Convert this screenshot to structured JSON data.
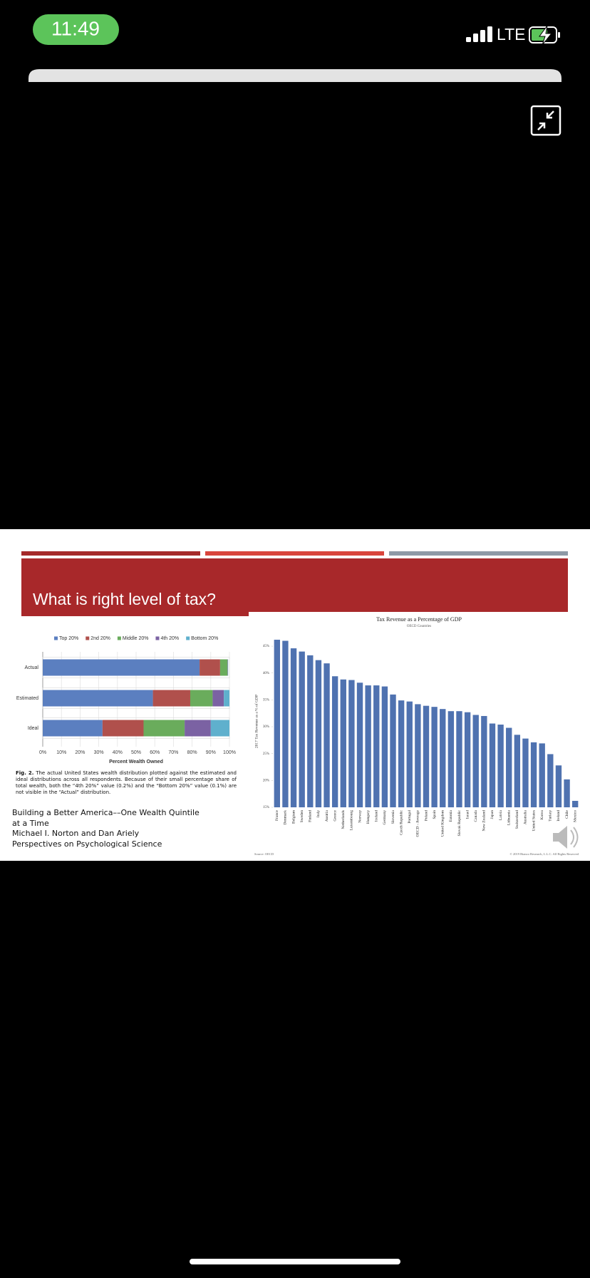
{
  "status_bar": {
    "time": "11:49",
    "network": "LTE"
  },
  "slide": {
    "title": "What is right level of tax?",
    "caption_label": "Fig. 2.",
    "caption": "The actual United States wealth distribution plotted against the estimated and ideal distributions across all respondents. Because of their small percentage share of total wealth, both the “4th 20%” value (0.2%) and the “Bottom 20%” value (0.1%) are not visible in the “Actual” distribution.",
    "citation": [
      "Building a Better America––One Wealth Quintile at a Time",
      "Michael I. Norton and Dan Ariely",
      "Perspectives on Psychological Science"
    ]
  },
  "chart_data": [
    {
      "type": "bar",
      "orientation": "horizontal",
      "stacked": true,
      "x_label": "Percent Wealth Owned",
      "categories": [
        "Actual",
        "Estimated",
        "Ideal"
      ],
      "series": [
        {
          "name": "Top 20%",
          "color": "#5b7fc0",
          "values": [
            84,
            59,
            32
          ]
        },
        {
          "name": "2nd 20%",
          "color": "#b0504c",
          "values": [
            11,
            20,
            22
          ]
        },
        {
          "name": "Middle 20%",
          "color": "#6aac5c",
          "values": [
            4,
            12,
            22
          ]
        },
        {
          "name": "4th 20%",
          "color": "#7b62a3",
          "values": [
            0.2,
            6,
            14
          ]
        },
        {
          "name": "Bottom 20%",
          "color": "#5fb0cd",
          "values": [
            0.1,
            3,
            10
          ]
        }
      ],
      "xlim": [
        0,
        100
      ],
      "xticks": [
        {
          "value": 0,
          "label": "0%"
        },
        {
          "value": 10,
          "label": "10%"
        },
        {
          "value": 20,
          "label": "20%"
        },
        {
          "value": 30,
          "label": "30%"
        },
        {
          "value": 40,
          "label": "40%"
        },
        {
          "value": 50,
          "label": "50%"
        },
        {
          "value": 60,
          "label": "60%"
        },
        {
          "value": 70,
          "label": "70%"
        },
        {
          "value": 80,
          "label": "80%"
        },
        {
          "value": 90,
          "label": "90%"
        },
        {
          "value": 100,
          "label": "100%"
        }
      ],
      "grid": true,
      "legend": "top"
    },
    {
      "type": "bar",
      "orientation": "vertical",
      "title": "Tax Revenue as a Percentage of GDP",
      "subtitle": "OECD Countries",
      "y_label": "2017 Tax Revenue as a % of GDP",
      "source": "Source: OECD",
      "copyright": "© 2019 Bianco Research, L.L.C. All Rights Reserved",
      "categories": [
        "France",
        "Denmark",
        "Belgium",
        "Sweden",
        "Finland",
        "Italy",
        "Austria",
        "Greece",
        "Netherlands",
        "Luxembourg",
        "Norway",
        "Hungary",
        "Iceland",
        "Germany",
        "Slovenia",
        "Czech Republic",
        "Portugal",
        "OECD - Average",
        "Poland",
        "Spain",
        "United Kingdom",
        "Estonia",
        "Slovak Republic",
        "Israel",
        "Canada",
        "New Zealand",
        "Japan",
        "Latvia",
        "Lithuania",
        "Switzerland",
        "Australia",
        "United States",
        "Korea",
        "Turkey",
        "Ireland",
        "Chile",
        "Mexico"
      ],
      "values": [
        46.2,
        46.0,
        44.6,
        44.0,
        43.3,
        42.4,
        41.8,
        39.4,
        38.8,
        38.7,
        38.2,
        37.7,
        37.7,
        37.5,
        36.0,
        34.9,
        34.7,
        34.2,
        33.9,
        33.7,
        33.3,
        32.9,
        32.9,
        32.7,
        32.2,
        32.0,
        30.6,
        30.4,
        29.8,
        28.5,
        27.8,
        27.1,
        26.9,
        24.9,
        22.8,
        20.2,
        16.2
      ],
      "color": "#4f72b0",
      "ylim": [
        15,
        47
      ],
      "yticks": [
        {
          "value": 15,
          "label": "15%"
        },
        {
          "value": 20,
          "label": "20%"
        },
        {
          "value": 25,
          "label": "25%"
        },
        {
          "value": 30,
          "label": "30%"
        },
        {
          "value": 35,
          "label": "35%"
        },
        {
          "value": 40,
          "label": "40%"
        },
        {
          "value": 45,
          "label": "45%"
        }
      ],
      "grid": false
    }
  ]
}
